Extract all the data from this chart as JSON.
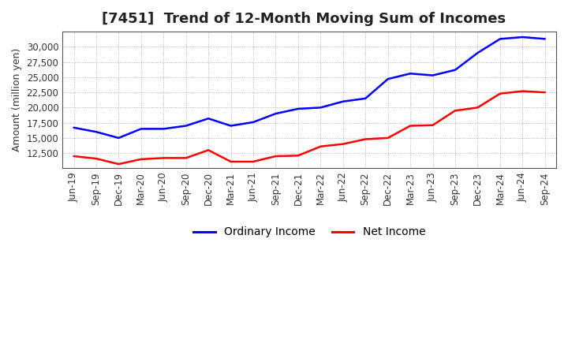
{
  "title": "[7451]  Trend of 12-Month Moving Sum of Incomes",
  "ylabel": "Amount (million yen)",
  "labels": [
    "Jun-19",
    "Sep-19",
    "Dec-19",
    "Mar-20",
    "Jun-20",
    "Sep-20",
    "Dec-20",
    "Mar-21",
    "Jun-21",
    "Sep-21",
    "Dec-21",
    "Mar-22",
    "Jun-22",
    "Sep-22",
    "Dec-22",
    "Mar-23",
    "Jun-23",
    "Sep-23",
    "Dec-23",
    "Mar-24",
    "Jun-24",
    "Sep-24"
  ],
  "ordinary_income": [
    16700,
    16000,
    15000,
    16500,
    16500,
    17000,
    18200,
    17000,
    17600,
    19000,
    19800,
    20000,
    21000,
    21500,
    24700,
    25600,
    25300,
    26200,
    29000,
    31300,
    31600,
    31300
  ],
  "net_income": [
    12000,
    11600,
    10700,
    11500,
    11700,
    11700,
    13000,
    11100,
    11100,
    12000,
    12100,
    13600,
    14000,
    14800,
    15000,
    17000,
    17100,
    19500,
    20000,
    22300,
    22700,
    22500
  ],
  "ordinary_income_color": "#0000ff",
  "net_income_color": "#ff0000",
  "background_color": "#ffffff",
  "plot_bg_color": "#ffffff",
  "grid_color": "#888888",
  "ylim_min": 10000,
  "ylim_max": 32500,
  "yticks": [
    12500,
    15000,
    17500,
    20000,
    22500,
    25000,
    27500,
    30000
  ],
  "title_fontsize": 13,
  "axis_fontsize": 9,
  "tick_fontsize": 8.5,
  "legend_labels": [
    "Ordinary Income",
    "Net Income"
  ],
  "linewidth": 1.8
}
